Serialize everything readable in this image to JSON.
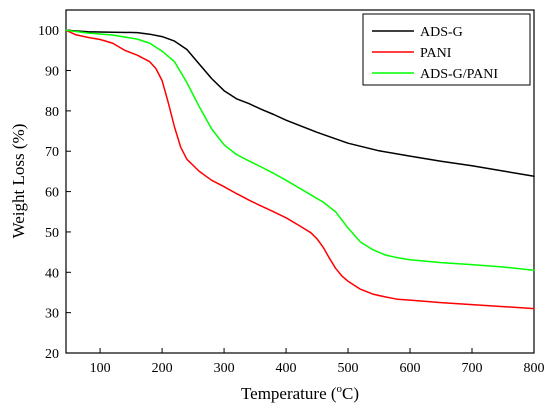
{
  "chart_data": {
    "type": "line",
    "title": "",
    "xlabel": "Temperature (°C)",
    "xlabel_parts": {
      "text": "Temperature (",
      "superscript": "o",
      "unit": "C)"
    },
    "ylabel": "Weight Loss (%)",
    "xlim": [
      45,
      800
    ],
    "ylim": [
      20,
      105
    ],
    "xticks": [
      100,
      200,
      300,
      400,
      500,
      600,
      700,
      800
    ],
    "yticks": [
      20,
      30,
      40,
      50,
      60,
      70,
      80,
      90,
      100
    ],
    "grid": false,
    "legend_position": "top-right",
    "series": [
      {
        "name": "ADS-G",
        "color": "#000000",
        "points": [
          [
            45,
            100
          ],
          [
            80,
            99.6
          ],
          [
            120,
            99.5
          ],
          [
            160,
            99.4
          ],
          [
            180,
            99
          ],
          [
            200,
            98.4
          ],
          [
            220,
            97.3
          ],
          [
            240,
            95.2
          ],
          [
            260,
            91.6
          ],
          [
            280,
            88
          ],
          [
            300,
            85
          ],
          [
            320,
            83
          ],
          [
            340,
            81.8
          ],
          [
            360,
            80.4
          ],
          [
            380,
            79.1
          ],
          [
            400,
            77.7
          ],
          [
            450,
            74.7
          ],
          [
            500,
            72
          ],
          [
            550,
            70.1
          ],
          [
            600,
            68.8
          ],
          [
            650,
            67.5
          ],
          [
            700,
            66.4
          ],
          [
            750,
            65.1
          ],
          [
            800,
            63.8
          ]
        ]
      },
      {
        "name": "PANI",
        "color": "#ff0000",
        "points": [
          [
            45,
            100
          ],
          [
            60,
            98.9
          ],
          [
            80,
            98.2
          ],
          [
            100,
            97.7
          ],
          [
            120,
            96.8
          ],
          [
            140,
            95
          ],
          [
            160,
            93.8
          ],
          [
            180,
            92.2
          ],
          [
            190,
            90.5
          ],
          [
            200,
            87.5
          ],
          [
            210,
            82
          ],
          [
            220,
            76
          ],
          [
            230,
            71
          ],
          [
            240,
            68
          ],
          [
            260,
            65
          ],
          [
            280,
            62.8
          ],
          [
            300,
            61.2
          ],
          [
            320,
            59.5
          ],
          [
            340,
            57.9
          ],
          [
            360,
            56.4
          ],
          [
            380,
            55
          ],
          [
            400,
            53.5
          ],
          [
            420,
            51.7
          ],
          [
            440,
            49.8
          ],
          [
            450,
            48.3
          ],
          [
            460,
            46.2
          ],
          [
            470,
            43.5
          ],
          [
            480,
            41
          ],
          [
            490,
            39.1
          ],
          [
            500,
            37.8
          ],
          [
            520,
            35.8
          ],
          [
            540,
            34.6
          ],
          [
            560,
            33.9
          ],
          [
            580,
            33.3
          ],
          [
            600,
            33.1
          ],
          [
            650,
            32.5
          ],
          [
            700,
            32
          ],
          [
            750,
            31.5
          ],
          [
            800,
            31
          ]
        ]
      },
      {
        "name": "ADS-G/PANI",
        "color": "#00ff00",
        "points": [
          [
            45,
            100
          ],
          [
            80,
            99.3
          ],
          [
            120,
            98.8
          ],
          [
            160,
            97.8
          ],
          [
            180,
            96.8
          ],
          [
            200,
            94.8
          ],
          [
            220,
            92.2
          ],
          [
            240,
            87
          ],
          [
            260,
            81
          ],
          [
            280,
            75.5
          ],
          [
            300,
            71.6
          ],
          [
            320,
            69.2
          ],
          [
            340,
            67.6
          ],
          [
            360,
            66.1
          ],
          [
            380,
            64.5
          ],
          [
            400,
            62.8
          ],
          [
            420,
            61
          ],
          [
            440,
            59.2
          ],
          [
            460,
            57.4
          ],
          [
            480,
            55
          ],
          [
            500,
            51
          ],
          [
            520,
            47.5
          ],
          [
            540,
            45.6
          ],
          [
            560,
            44.3
          ],
          [
            580,
            43.6
          ],
          [
            600,
            43.1
          ],
          [
            650,
            42.4
          ],
          [
            700,
            41.9
          ],
          [
            750,
            41.3
          ],
          [
            800,
            40.5
          ]
        ]
      }
    ]
  }
}
